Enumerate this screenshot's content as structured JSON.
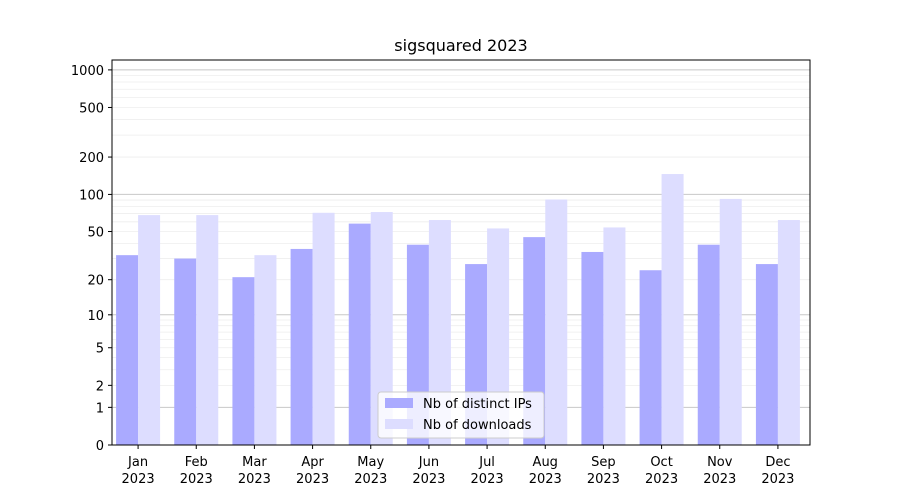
{
  "chart_data": {
    "type": "bar",
    "title": "sigsquared 2023",
    "xlabel": "",
    "ylabel": "",
    "y_scale": "log1p",
    "ylim": [
      0,
      1200
    ],
    "y_ticks": [
      0,
      1,
      2,
      5,
      10,
      20,
      50,
      100,
      200,
      500,
      1000
    ],
    "y_tick_labels": [
      "0",
      "1",
      "2",
      "5",
      "10",
      "20",
      "50",
      "100",
      "200",
      "500",
      "1000"
    ],
    "grid": true,
    "legend_position": "lower center",
    "categories": [
      "Jan",
      "Feb",
      "Mar",
      "Apr",
      "May",
      "Jun",
      "Jul",
      "Aug",
      "Sep",
      "Oct",
      "Nov",
      "Dec"
    ],
    "category_year": "2023",
    "series": [
      {
        "name": "Nb of distinct IPs",
        "color": "#aaaaff",
        "values": [
          32,
          30,
          21,
          36,
          58,
          39,
          27,
          45,
          34,
          24,
          39,
          27
        ]
      },
      {
        "name": "Nb of downloads",
        "color": "#ddddff",
        "values": [
          68,
          68,
          32,
          71,
          72,
          62,
          53,
          91,
          54,
          146,
          92,
          62
        ]
      }
    ]
  }
}
